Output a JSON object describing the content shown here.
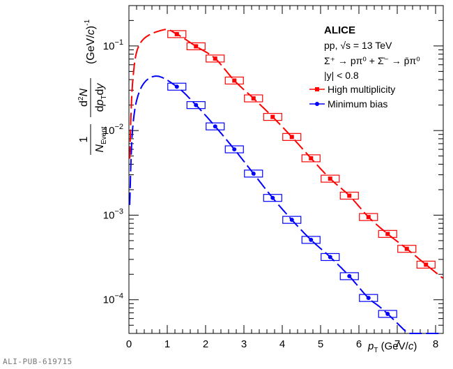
{
  "chart_data": {
    "type": "scatter",
    "experiment": "ALICE",
    "annotations": {
      "collision": "pp, √s = 13 TeV",
      "decay": "Σ⁺ → pπ⁰ + Σ̄⁻ → p̄π⁰",
      "rapidity": "|y| < 0.8"
    },
    "xlabel": "p_T (GeV/c)",
    "ylabel": "1/N_Event d²N/dp_T dy (GeV/c)^-1",
    "xlim": [
      0,
      8.2
    ],
    "ylim": [
      4e-05,
      0.3
    ],
    "yscale": "log",
    "x_ticks": [
      "0",
      "1",
      "2",
      "3",
      "4",
      "5",
      "6",
      "7",
      "8"
    ],
    "y_ticks": [
      "10⁻¹",
      "10⁻²",
      "10⁻³",
      "10⁻⁴"
    ],
    "legend": {
      "placement": "top-right"
    },
    "series": [
      {
        "name": "High multiplicity",
        "color": "#ff0000",
        "marker": "square",
        "x": [
          1.25,
          1.75,
          2.25,
          2.75,
          3.25,
          3.75,
          4.25,
          4.75,
          5.25,
          5.75,
          6.25,
          6.75,
          7.25,
          7.75
        ],
        "y": [
          0.138,
          0.099,
          0.071,
          0.039,
          0.024,
          0.0145,
          0.0084,
          0.0047,
          0.0027,
          0.0017,
          0.00095,
          0.0006,
          0.0004,
          0.00026
        ],
        "fit": {
          "peak_x": 0.9,
          "peak_y": 0.155,
          "x_range": [
            0,
            8.2
          ]
        }
      },
      {
        "name": "Minimum bias",
        "color": "#0000ff",
        "marker": "circle",
        "x": [
          1.25,
          1.75,
          2.25,
          2.75,
          3.25,
          3.75,
          4.25,
          4.75,
          5.25,
          5.75,
          6.25,
          6.75
        ],
        "y": [
          0.033,
          0.02,
          0.0112,
          0.006,
          0.0031,
          0.0016,
          0.00088,
          0.00051,
          0.00032,
          0.00019,
          0.000105,
          6.8e-05
        ],
        "fit": {
          "peak_x": 0.7,
          "peak_y": 0.044,
          "x_range": [
            0,
            8.2
          ]
        }
      }
    ]
  },
  "figure_id": "ALI-PUB-619715"
}
